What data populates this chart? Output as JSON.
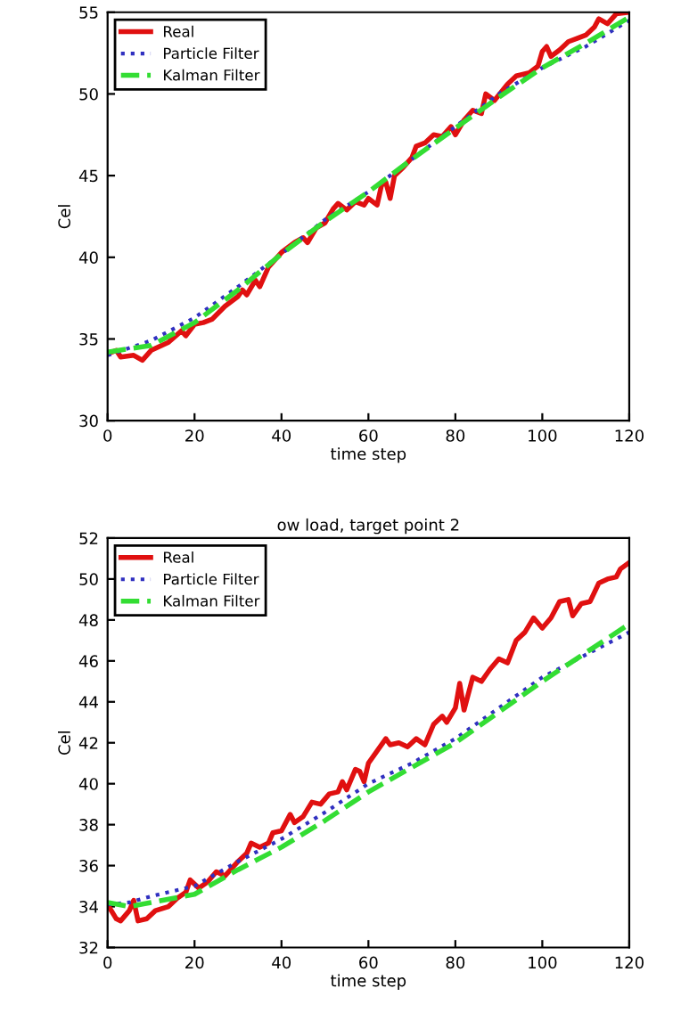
{
  "chart_data": [
    {
      "type": "line",
      "xlabel": "time step",
      "ylabel": "Cel",
      "xlim": [
        0,
        120
      ],
      "ylim": [
        30,
        55
      ],
      "xticks": [
        0,
        20,
        40,
        60,
        80,
        100,
        120
      ],
      "yticks": [
        30,
        35,
        40,
        45,
        50,
        55
      ],
      "grid": false,
      "legend": "top left",
      "series": [
        {
          "name": "Real",
          "color": "#e01010",
          "line_style": "solid",
          "x": [
            0,
            2,
            3,
            6,
            8,
            10,
            14,
            17,
            18,
            20,
            22,
            24,
            27,
            30,
            31,
            32,
            34,
            35,
            37,
            40,
            43,
            45,
            46,
            48,
            50,
            52,
            53,
            55,
            57,
            59,
            60,
            62,
            63,
            64,
            65,
            66,
            68,
            70,
            71,
            73,
            75,
            77,
            79,
            80,
            82,
            84,
            86,
            87,
            89,
            92,
            94,
            97,
            99,
            100,
            101,
            102,
            104,
            106,
            108,
            110,
            112,
            113,
            115,
            117,
            120
          ],
          "values": [
            34.1,
            34.3,
            33.9,
            34.0,
            33.7,
            34.3,
            34.8,
            35.5,
            35.2,
            35.9,
            36.0,
            36.2,
            37.0,
            37.6,
            38.0,
            37.7,
            38.6,
            38.2,
            39.4,
            40.3,
            40.9,
            41.2,
            40.9,
            41.8,
            42.1,
            43.0,
            43.3,
            42.9,
            43.4,
            43.2,
            43.6,
            43.2,
            44.4,
            44.6,
            43.6,
            45.0,
            45.5,
            46.1,
            46.8,
            47.0,
            47.5,
            47.4,
            48.0,
            47.5,
            48.4,
            49.0,
            48.8,
            50.0,
            49.6,
            50.6,
            51.1,
            51.3,
            51.7,
            52.6,
            52.9,
            52.3,
            52.7,
            53.2,
            53.4,
            53.6,
            54.1,
            54.6,
            54.3,
            54.9,
            55.0
          ]
        },
        {
          "name": "Particle Filter",
          "color": "#3030c0",
          "line_style": "dotted",
          "x": [
            0,
            10,
            20,
            30,
            40,
            50,
            60,
            70,
            80,
            90,
            100,
            110,
            120
          ],
          "values": [
            34.0,
            34.9,
            36.3,
            38.2,
            40.2,
            42.3,
            44.0,
            46.0,
            48.0,
            50.0,
            51.6,
            52.9,
            54.5
          ]
        },
        {
          "name": "Kalman Filter",
          "color": "#33dd33",
          "line_style": "dashed",
          "x": [
            0,
            10,
            20,
            30,
            40,
            50,
            60,
            70,
            80,
            90,
            100,
            110,
            120
          ],
          "values": [
            34.2,
            34.6,
            36.0,
            38.0,
            40.2,
            42.2,
            44.0,
            46.0,
            47.9,
            49.8,
            51.6,
            53.1,
            54.7
          ]
        }
      ]
    },
    {
      "type": "line",
      "title": "ow load, target point 2",
      "xlabel": "time step",
      "ylabel": "Cel",
      "xlim": [
        0,
        120
      ],
      "ylim": [
        32,
        52
      ],
      "xticks": [
        0,
        20,
        40,
        60,
        80,
        100,
        120
      ],
      "yticks": [
        32,
        34,
        36,
        38,
        40,
        42,
        44,
        46,
        48,
        50,
        52
      ],
      "grid": false,
      "legend": "top left",
      "series": [
        {
          "name": "Real",
          "color": "#e01010",
          "line_style": "solid",
          "x": [
            0,
            2,
            3,
            5,
            6,
            7,
            9,
            11,
            14,
            16,
            18,
            19,
            21,
            23,
            25,
            27,
            30,
            32,
            33,
            35,
            37,
            38,
            40,
            42,
            43,
            45,
            47,
            49,
            51,
            53,
            54,
            55,
            57,
            58,
            59,
            60,
            62,
            64,
            65,
            67,
            69,
            71,
            73,
            75,
            77,
            78,
            80,
            81,
            82,
            84,
            86,
            88,
            90,
            92,
            94,
            96,
            98,
            100,
            102,
            104,
            106,
            107,
            109,
            111,
            113,
            115,
            117,
            118,
            120
          ],
          "values": [
            34.1,
            33.4,
            33.3,
            33.8,
            34.3,
            33.3,
            33.4,
            33.8,
            34.0,
            34.4,
            34.7,
            35.3,
            34.9,
            35.2,
            35.7,
            35.5,
            36.2,
            36.6,
            37.1,
            36.9,
            37.1,
            37.6,
            37.7,
            38.5,
            38.1,
            38.4,
            39.1,
            39.0,
            39.5,
            39.6,
            40.1,
            39.7,
            40.7,
            40.6,
            40.1,
            41.0,
            41.6,
            42.2,
            41.9,
            42.0,
            41.8,
            42.2,
            41.9,
            42.9,
            43.3,
            43.0,
            43.7,
            44.9,
            43.6,
            45.2,
            45.0,
            45.6,
            46.1,
            45.9,
            47.0,
            47.4,
            48.1,
            47.6,
            48.1,
            48.9,
            49.0,
            48.2,
            48.8,
            48.9,
            49.8,
            50.0,
            50.1,
            50.5,
            50.8
          ]
        },
        {
          "name": "Particle Filter",
          "color": "#3030c0",
          "line_style": "dotted",
          "x": [
            0,
            5,
            10,
            20,
            30,
            40,
            50,
            60,
            65,
            70,
            80,
            90,
            100,
            110,
            120
          ],
          "values": [
            34.1,
            34.2,
            34.5,
            35.0,
            36.2,
            37.3,
            38.6,
            40.0,
            40.5,
            41.0,
            42.2,
            43.7,
            45.2,
            46.3,
            47.4
          ]
        },
        {
          "name": "Kalman Filter",
          "color": "#33dd33",
          "line_style": "dashed",
          "x": [
            0,
            5,
            10,
            20,
            30,
            40,
            50,
            60,
            70,
            80,
            90,
            100,
            110,
            120
          ],
          "values": [
            34.2,
            34.0,
            34.2,
            34.6,
            35.8,
            36.9,
            38.2,
            39.6,
            40.8,
            42.0,
            43.5,
            45.0,
            46.4,
            47.8
          ]
        }
      ]
    }
  ]
}
